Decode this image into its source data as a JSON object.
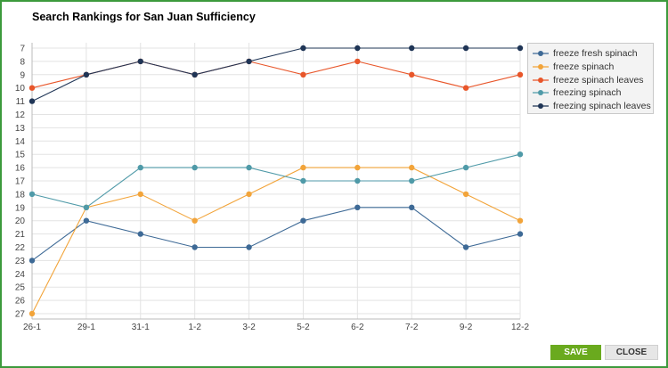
{
  "dialog": {
    "title": "Search Rankings for San Juan Sufficiency",
    "save_label": "SAVE",
    "close_label": "CLOSE"
  },
  "colors": {
    "border": "#3c9a3c",
    "save_bg": "#6aaa1e",
    "grid": "#e3e3e3"
  },
  "chart_data": {
    "type": "line",
    "title": "Search Rankings for San Juan Sufficiency",
    "categories": [
      "26-1",
      "29-1",
      "31-1",
      "1-2",
      "3-2",
      "5-2",
      "6-2",
      "7-2",
      "9-2",
      "12-2"
    ],
    "yticks": [
      7,
      8,
      9,
      10,
      11,
      12,
      13,
      14,
      15,
      16,
      17,
      18,
      19,
      20,
      21,
      22,
      23,
      24,
      25,
      26,
      27
    ],
    "ylim": [
      7,
      27
    ],
    "y_inverted": true,
    "grid": true,
    "legend_position": "right",
    "series": [
      {
        "name": "freeze fresh spinach",
        "color": "#3e6a96",
        "values": [
          23,
          20,
          21,
          22,
          22,
          20,
          19,
          19,
          22,
          21
        ]
      },
      {
        "name": "freeze spinach",
        "color": "#f2a43a",
        "values": [
          27,
          19,
          18,
          20,
          18,
          16,
          16,
          16,
          18,
          20
        ]
      },
      {
        "name": "freeze spinach leaves",
        "color": "#e8562a",
        "values": [
          10,
          9,
          8,
          9,
          8,
          9,
          8,
          9,
          10,
          9
        ]
      },
      {
        "name": "freezing spinach",
        "color": "#4f9aa8",
        "values": [
          18,
          19,
          16,
          16,
          16,
          17,
          17,
          17,
          16,
          15
        ]
      },
      {
        "name": "freezing spinach leaves",
        "color": "#1f3556",
        "values": [
          11,
          9,
          8,
          9,
          8,
          7,
          7,
          7,
          7,
          7
        ]
      }
    ]
  }
}
